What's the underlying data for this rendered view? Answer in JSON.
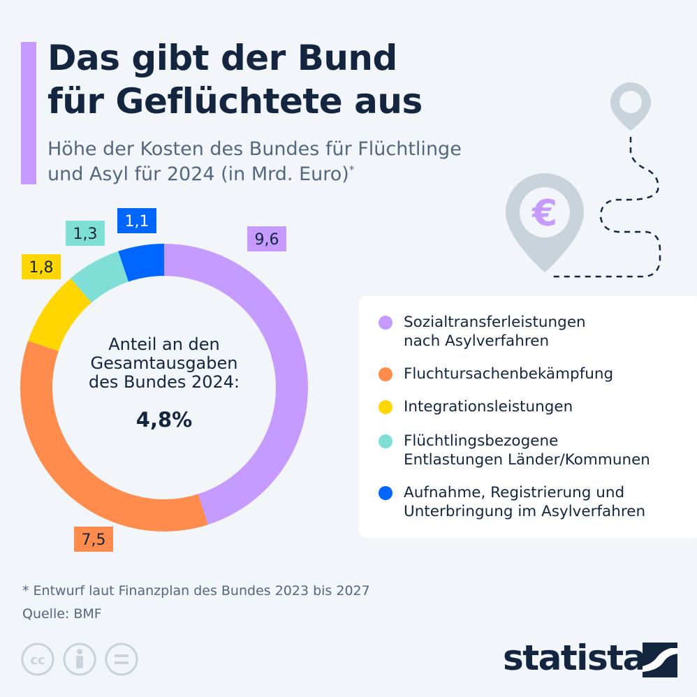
{
  "title": "Das gibt der Bund\nfür Geflüchtete aus",
  "title_line1": "Das gibt der Bund",
  "title_line2": "für Geflüchtete aus",
  "subtitle_line1": "Höhe der Kosten des Bundes für Flüchtlinge",
  "subtitle_line2": "und Asyl für 2024 (in Mrd. Euro)",
  "subtitle_marker": "*",
  "center_label": "Anteil an den Gesamtausgaben des Bundes 2024:",
  "center_label_lines": [
    "Anteil an den",
    "Gesamtausgaben",
    "des Bundes 2024:"
  ],
  "center_value": "4,8%",
  "footnote": "* Entwurf laut Finanzplan des Bundes 2023 bis 2027",
  "source": "Quelle: BMF",
  "brand": "statista",
  "decor_icon": "euro-map-pin-icon",
  "chart_data": {
    "type": "pie",
    "donut": true,
    "series": [
      {
        "name": "Sozialtransferleistungen\nnach Asylverfahren",
        "value": 9.6,
        "label": "9,6",
        "color": "#c59bff",
        "label_text_color": "#13253f"
      },
      {
        "name": "Fluchtursachenbekämpfung",
        "value": 7.5,
        "label": "7,5",
        "color": "#ff8c4c",
        "label_text_color": "#13253f"
      },
      {
        "name": "Integrationsleistungen",
        "value": 1.8,
        "label": "1,8",
        "color": "#ffd600",
        "label_text_color": "#13253f"
      },
      {
        "name": "Flüchtlingsbezogene\nEntlastungen Länder/Kommunen",
        "value": 1.3,
        "label": "1,3",
        "color": "#7fded6",
        "label_text_color": "#13253f"
      },
      {
        "name": "Aufnahme, Registrierung und\nUnterbringung im Asylverfahren",
        "value": 1.1,
        "label": "1,1",
        "color": "#0066ff",
        "label_text_color": "#ffffff"
      }
    ]
  }
}
